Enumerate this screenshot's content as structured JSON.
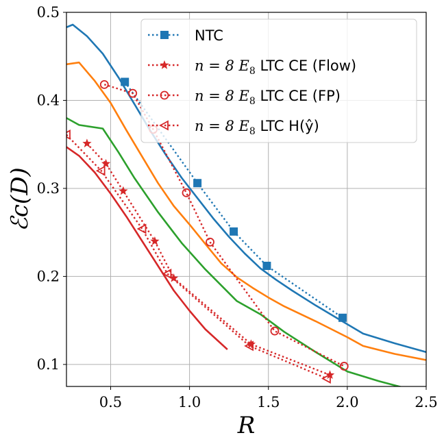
{
  "chart_data": {
    "type": "line",
    "xlabel": "R",
    "ylabel": "ℰc(D)",
    "xlim": [
      0.22,
      2.5
    ],
    "ylim": [
      0.075,
      0.5
    ],
    "xticks": [
      0.5,
      1.0,
      1.5,
      2.0,
      2.5
    ],
    "xtick_labels": [
      "0.5",
      "1.0",
      "1.5",
      "2.0",
      "2.5"
    ],
    "yticks": [
      0.1,
      0.2,
      0.3,
      0.4,
      0.5
    ],
    "ytick_labels": [
      "0.1",
      "0.2",
      "0.3",
      "0.4",
      "0.5"
    ],
    "grid": true,
    "legend_position": "top-right",
    "solid_curves": [
      {
        "name": "blue-solid",
        "color": "#1f77b4",
        "x": [
          0.22,
          0.26,
          0.35,
          0.45,
          0.55,
          0.65,
          0.75,
          0.85,
          0.95,
          1.05,
          1.15,
          1.25,
          1.35,
          1.45,
          1.55,
          1.65,
          1.8,
          1.95,
          2.1,
          2.3,
          2.5
        ],
        "y": [
          0.483,
          0.486,
          0.473,
          0.453,
          0.426,
          0.396,
          0.366,
          0.338,
          0.312,
          0.289,
          0.266,
          0.245,
          0.226,
          0.209,
          0.196,
          0.184,
          0.167,
          0.151,
          0.135,
          0.124,
          0.114
        ]
      },
      {
        "name": "orange-solid",
        "color": "#ff7f0e",
        "x": [
          0.22,
          0.3,
          0.4,
          0.5,
          0.6,
          0.7,
          0.8,
          0.9,
          1.0,
          1.1,
          1.2,
          1.3,
          1.4,
          1.5,
          1.6,
          1.8,
          2.0,
          2.1,
          2.3,
          2.5
        ],
        "y": [
          0.441,
          0.443,
          0.422,
          0.397,
          0.366,
          0.336,
          0.306,
          0.28,
          0.259,
          0.237,
          0.215,
          0.199,
          0.187,
          0.176,
          0.166,
          0.149,
          0.131,
          0.121,
          0.112,
          0.105
        ]
      },
      {
        "name": "green-solid",
        "color": "#2ca02c",
        "x": [
          0.22,
          0.3,
          0.45,
          0.55,
          0.65,
          0.8,
          0.95,
          1.1,
          1.3,
          1.45,
          1.6,
          1.8,
          2.0,
          2.2,
          2.37
        ],
        "y": [
          0.38,
          0.372,
          0.368,
          0.341,
          0.312,
          0.273,
          0.238,
          0.208,
          0.172,
          0.157,
          0.137,
          0.114,
          0.092,
          0.081,
          0.073
        ]
      },
      {
        "name": "red-solid",
        "color": "#d62728",
        "x": [
          0.22,
          0.3,
          0.4,
          0.5,
          0.6,
          0.7,
          0.8,
          0.9,
          1.0,
          1.1,
          1.24
        ],
        "y": [
          0.347,
          0.337,
          0.318,
          0.294,
          0.268,
          0.24,
          0.212,
          0.184,
          0.161,
          0.14,
          0.117
        ]
      }
    ],
    "series": [
      {
        "name": "NTC",
        "legend_text": "NTC",
        "color": "#1f77b4",
        "marker": "square",
        "x": [
          0.59,
          1.05,
          1.28,
          1.49,
          1.97
        ],
        "y": [
          0.421,
          0.306,
          0.251,
          0.212,
          0.153
        ]
      },
      {
        "name": "n=8 E8 LTC CE (Flow)",
        "legend_math": "n = 8 E",
        "legend_sub": "8",
        "legend_text": " LTC CE (Flow)",
        "color": "#d62728",
        "marker": "star",
        "x": [
          0.35,
          0.47,
          0.58,
          0.78,
          0.9,
          1.39,
          1.89
        ],
        "y": [
          0.351,
          0.328,
          0.297,
          0.24,
          0.198,
          0.123,
          0.088
        ]
      },
      {
        "name": "n=8 E8 LTC CE (FP)",
        "legend_math": "n = 8 E",
        "legend_sub": "8",
        "legend_text": " LTC CE (FP)",
        "color": "#d62728",
        "marker": "circle",
        "x": [
          0.46,
          0.64,
          0.77,
          0.98,
          1.13,
          1.54,
          1.98
        ],
        "y": [
          0.418,
          0.408,
          0.367,
          0.295,
          0.239,
          0.138,
          0.098
        ]
      },
      {
        "name": "n=8 E8 LTC H(y)",
        "legend_math": "n = 8 E",
        "legend_sub": "8",
        "legend_text": " LTC H(ŷ)",
        "color": "#d62728",
        "marker": "triangle-left",
        "x": [
          0.22,
          0.44,
          0.7,
          0.86,
          1.38,
          1.87
        ],
        "y": [
          0.361,
          0.32,
          0.254,
          0.203,
          0.121,
          0.084
        ]
      }
    ]
  }
}
